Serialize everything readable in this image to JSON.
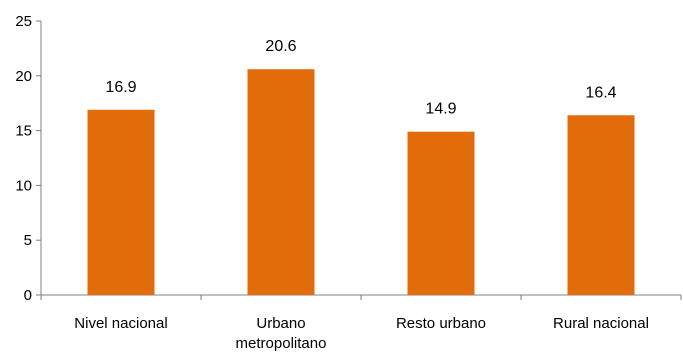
{
  "chart_data": {
    "type": "bar",
    "categories": [
      [
        "Nivel nacional"
      ],
      [
        "Urbano",
        "metropolitano"
      ],
      [
        "Resto urbano"
      ],
      [
        "Rural nacional"
      ]
    ],
    "values": [
      16.9,
      20.6,
      14.9,
      16.4
    ],
    "data_labels": [
      "16.9",
      "20.6",
      "14.9",
      "16.4"
    ],
    "y_ticks": [
      "0",
      "5",
      "10",
      "15",
      "20",
      "25"
    ],
    "ylim": [
      0,
      25
    ],
    "title": "",
    "xlabel": "",
    "ylabel": "",
    "grid": false,
    "legend": "none",
    "colors": {
      "bar": "#E36C0A",
      "axis": "#808080",
      "text": "#000000"
    }
  }
}
